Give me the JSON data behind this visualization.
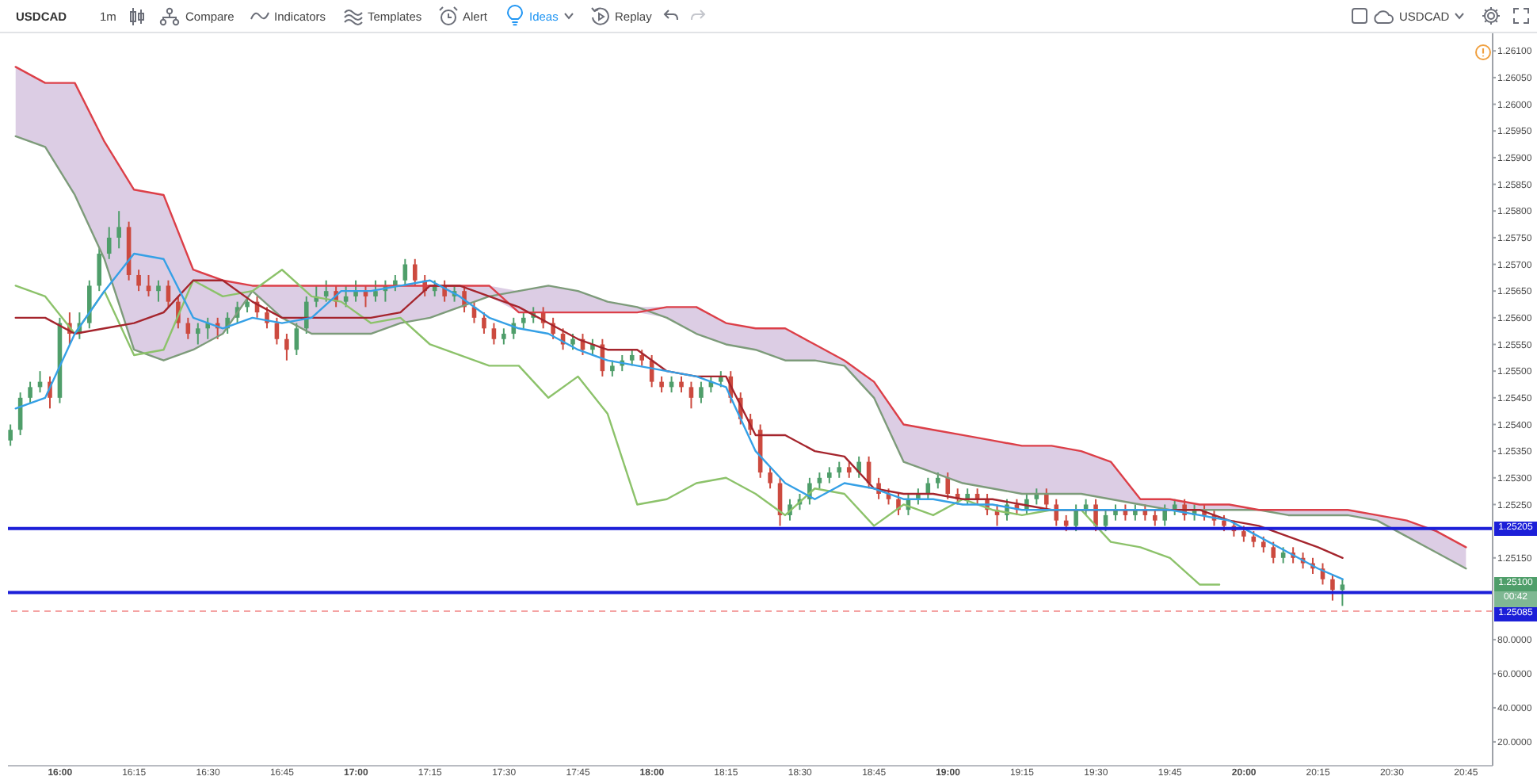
{
  "chart_data": [
    {
      "type": "candlestick",
      "title": "USDCAD",
      "x": [
        15.8333,
        15.8667,
        15.9,
        15.9333,
        15.9667,
        16,
        16.0333,
        16.0667,
        16.1,
        16.1333,
        16.1667,
        16.2,
        16.2333,
        16.2667,
        16.3,
        16.3333,
        16.3667,
        16.4,
        16.4333,
        16.4667,
        16.5,
        16.5333,
        16.5667,
        16.6,
        16.6333,
        16.6667,
        16.7,
        16.7333,
        16.7667,
        16.8,
        16.8333,
        16.8667,
        16.9,
        16.9333,
        16.9667,
        17,
        17.0333,
        17.0667,
        17.1,
        17.1333,
        17.1667,
        17.2,
        17.2333,
        17.2667,
        17.3,
        17.3333,
        17.3667,
        17.4,
        17.4333,
        17.4667,
        17.5,
        17.5333,
        17.5667,
        17.6,
        17.6333,
        17.6667,
        17.7,
        17.7333,
        17.7667,
        17.8,
        17.8333,
        17.8667,
        17.9,
        17.9333,
        17.9667,
        18,
        18.0333,
        18.0667,
        18.1,
        18.1333,
        18.1667,
        18.2,
        18.2333,
        18.2667,
        18.3,
        18.3333,
        18.3667,
        18.4,
        18.4333,
        18.4667,
        18.5,
        18.5333,
        18.5667,
        18.6,
        18.6333,
        18.6667,
        18.7,
        18.7333,
        18.7667,
        18.8,
        18.8333,
        18.8667,
        18.9,
        18.9333,
        18.9667,
        19,
        19.0333,
        19.0667,
        19.1,
        19.1333,
        19.1667,
        19.2,
        19.2333,
        19.2667,
        19.3,
        19.3333,
        19.3667,
        19.4,
        19.4333,
        19.4667,
        19.5,
        19.5333,
        19.5667,
        19.6,
        19.6333,
        19.6667,
        19.7,
        19.7333,
        19.7667,
        19.8,
        19.8333,
        19.8667,
        19.9,
        19.9333,
        19.9667,
        20,
        20.0333,
        20.0667,
        20.1,
        20.1333,
        20.1667,
        20.2,
        20.2333,
        20.2667,
        20.3,
        20.3333
      ],
      "ohlc": [
        [
          1.2537,
          1.254,
          1.2536,
          1.2539
        ],
        [
          1.2539,
          1.2546,
          1.2538,
          1.2545
        ],
        [
          1.2545,
          1.2548,
          1.2544,
          1.2547
        ],
        [
          1.2547,
          1.255,
          1.2546,
          1.2548
        ],
        [
          1.2548,
          1.2549,
          1.2543,
          1.2545
        ],
        [
          1.2545,
          1.256,
          1.2544,
          1.2559
        ],
        [
          1.2559,
          1.2561,
          1.2555,
          1.2557
        ],
        [
          1.2557,
          1.2561,
          1.2556,
          1.2559
        ],
        [
          1.2559,
          1.2567,
          1.2558,
          1.2566
        ],
        [
          1.2566,
          1.2573,
          1.2565,
          1.2572
        ],
        [
          1.2572,
          1.2577,
          1.2571,
          1.2575
        ],
        [
          1.2575,
          1.258,
          1.2573,
          1.2577
        ],
        [
          1.2577,
          1.2578,
          1.2567,
          1.2568
        ],
        [
          1.2568,
          1.2569,
          1.2565,
          1.2566
        ],
        [
          1.2566,
          1.2568,
          1.2564,
          1.2565
        ],
        [
          1.2565,
          1.2567,
          1.2563,
          1.2566
        ],
        [
          1.2566,
          1.2567,
          1.2562,
          1.2563
        ],
        [
          1.2563,
          1.2564,
          1.2558,
          1.2559
        ],
        [
          1.2559,
          1.256,
          1.2556,
          1.2557
        ],
        [
          1.2557,
          1.2559,
          1.2555,
          1.2558
        ],
        [
          1.2558,
          1.256,
          1.2556,
          1.2559
        ],
        [
          1.2559,
          1.256,
          1.2556,
          1.2558
        ],
        [
          1.2558,
          1.2561,
          1.2557,
          1.256
        ],
        [
          1.256,
          1.2563,
          1.2559,
          1.2562
        ],
        [
          1.2562,
          1.2564,
          1.2561,
          1.2563
        ],
        [
          1.2563,
          1.2564,
          1.256,
          1.2561
        ],
        [
          1.2561,
          1.2562,
          1.2558,
          1.2559
        ],
        [
          1.2559,
          1.256,
          1.2555,
          1.2556
        ],
        [
          1.2556,
          1.2557,
          1.2552,
          1.2554
        ],
        [
          1.2554,
          1.2559,
          1.2553,
          1.2558
        ],
        [
          1.2558,
          1.2564,
          1.2557,
          1.2563
        ],
        [
          1.2563,
          1.2566,
          1.2562,
          1.2564
        ],
        [
          1.2564,
          1.2567,
          1.2563,
          1.2565
        ],
        [
          1.2565,
          1.2566,
          1.2562,
          1.2563
        ],
        [
          1.2563,
          1.2566,
          1.2562,
          1.2564
        ],
        [
          1.2564,
          1.2567,
          1.2563,
          1.2565
        ],
        [
          1.2565,
          1.2566,
          1.2562,
          1.2564
        ],
        [
          1.2564,
          1.2567,
          1.2563,
          1.2565
        ],
        [
          1.2565,
          1.2567,
          1.2563,
          1.2566
        ],
        [
          1.2566,
          1.2568,
          1.2565,
          1.2567
        ],
        [
          1.2567,
          1.2571,
          1.2566,
          1.257
        ],
        [
          1.257,
          1.2571,
          1.2566,
          1.2567
        ],
        [
          1.2567,
          1.2568,
          1.2564,
          1.2565
        ],
        [
          1.2565,
          1.2567,
          1.2564,
          1.2566
        ],
        [
          1.2566,
          1.2567,
          1.2563,
          1.2564
        ],
        [
          1.2564,
          1.2566,
          1.2563,
          1.2565
        ],
        [
          1.2565,
          1.2566,
          1.2561,
          1.2562
        ],
        [
          1.2562,
          1.2563,
          1.2559,
          1.256
        ],
        [
          1.256,
          1.2561,
          1.2557,
          1.2558
        ],
        [
          1.2558,
          1.2559,
          1.2555,
          1.2556
        ],
        [
          1.2556,
          1.2558,
          1.2555,
          1.2557
        ],
        [
          1.2557,
          1.256,
          1.2556,
          1.2559
        ],
        [
          1.2559,
          1.2561,
          1.2558,
          1.256
        ],
        [
          1.256,
          1.2562,
          1.2559,
          1.2561
        ],
        [
          1.2561,
          1.2562,
          1.2558,
          1.2559
        ],
        [
          1.2559,
          1.256,
          1.2556,
          1.2557
        ],
        [
          1.2557,
          1.2558,
          1.2554,
          1.2555
        ],
        [
          1.2555,
          1.2557,
          1.2554,
          1.2556
        ],
        [
          1.2556,
          1.2557,
          1.2553,
          1.2554
        ],
        [
          1.2554,
          1.2556,
          1.2553,
          1.2555
        ],
        [
          1.2555,
          1.2556,
          1.2549,
          1.255
        ],
        [
          1.255,
          1.2552,
          1.2549,
          1.2551
        ],
        [
          1.2551,
          1.2553,
          1.255,
          1.2552
        ],
        [
          1.2552,
          1.2554,
          1.2551,
          1.2553
        ],
        [
          1.2553,
          1.2554,
          1.2551,
          1.2552
        ],
        [
          1.2552,
          1.2553,
          1.2547,
          1.2548
        ],
        [
          1.2548,
          1.2549,
          1.2546,
          1.2547
        ],
        [
          1.2547,
          1.2549,
          1.2546,
          1.2548
        ],
        [
          1.2548,
          1.2549,
          1.2546,
          1.2547
        ],
        [
          1.2547,
          1.2548,
          1.2543,
          1.2545
        ],
        [
          1.2545,
          1.2548,
          1.2544,
          1.2547
        ],
        [
          1.2547,
          1.2549,
          1.2546,
          1.2548
        ],
        [
          1.2548,
          1.255,
          1.2547,
          1.2549
        ],
        [
          1.2549,
          1.255,
          1.2544,
          1.2545
        ],
        [
          1.2545,
          1.2546,
          1.254,
          1.2541
        ],
        [
          1.2541,
          1.2542,
          1.2538,
          1.2539
        ],
        [
          1.2539,
          1.254,
          1.253,
          1.2531
        ],
        [
          1.2531,
          1.2532,
          1.2528,
          1.2529
        ],
        [
          1.2529,
          1.253,
          1.2521,
          1.2523
        ],
        [
          1.2523,
          1.2526,
          1.2522,
          1.2525
        ],
        [
          1.2525,
          1.2527,
          1.2524,
          1.2526
        ],
        [
          1.2526,
          1.253,
          1.2525,
          1.2529
        ],
        [
          1.2529,
          1.2531,
          1.2528,
          1.253
        ],
        [
          1.253,
          1.2532,
          1.2529,
          1.2531
        ],
        [
          1.2531,
          1.2533,
          1.253,
          1.2532
        ],
        [
          1.2532,
          1.2533,
          1.253,
          1.2531
        ],
        [
          1.2531,
          1.2534,
          1.253,
          1.2533
        ],
        [
          1.2533,
          1.2534,
          1.2528,
          1.2529
        ],
        [
          1.2529,
          1.253,
          1.2526,
          1.2527
        ],
        [
          1.2527,
          1.2528,
          1.2525,
          1.2526
        ],
        [
          1.2526,
          1.2527,
          1.2523,
          1.2524
        ],
        [
          1.2524,
          1.2527,
          1.2523,
          1.2526
        ],
        [
          1.2526,
          1.2528,
          1.2525,
          1.2527
        ],
        [
          1.2527,
          1.253,
          1.2526,
          1.2529
        ],
        [
          1.2529,
          1.2531,
          1.2528,
          1.253
        ],
        [
          1.253,
          1.2531,
          1.2526,
          1.2527
        ],
        [
          1.2527,
          1.2528,
          1.2525,
          1.2526
        ],
        [
          1.2526,
          1.2528,
          1.2525,
          1.2527
        ],
        [
          1.2527,
          1.2528,
          1.2525,
          1.2526
        ],
        [
          1.2526,
          1.2527,
          1.2523,
          1.2524
        ],
        [
          1.2524,
          1.2525,
          1.2521,
          1.2523
        ],
        [
          1.2523,
          1.2526,
          1.2522,
          1.2525
        ],
        [
          1.2525,
          1.2526,
          1.2523,
          1.2524
        ],
        [
          1.2524,
          1.2527,
          1.2523,
          1.2526
        ],
        [
          1.2526,
          1.2528,
          1.2525,
          1.2527
        ],
        [
          1.2527,
          1.2528,
          1.2524,
          1.2525
        ],
        [
          1.2525,
          1.2526,
          1.2521,
          1.2522
        ],
        [
          1.2522,
          1.2523,
          1.252,
          1.2521
        ],
        [
          1.2521,
          1.2525,
          1.252,
          1.2524
        ],
        [
          1.2524,
          1.2526,
          1.2523,
          1.2525
        ],
        [
          1.2525,
          1.2526,
          1.252,
          1.2521
        ],
        [
          1.2521,
          1.2524,
          1.252,
          1.2523
        ],
        [
          1.2523,
          1.2525,
          1.2522,
          1.2524
        ],
        [
          1.2524,
          1.2525,
          1.2522,
          1.2523
        ],
        [
          1.2523,
          1.2525,
          1.2522,
          1.2524
        ],
        [
          1.2524,
          1.2525,
          1.2522,
          1.2523
        ],
        [
          1.2523,
          1.2524,
          1.2521,
          1.2522
        ],
        [
          1.2522,
          1.2525,
          1.2521,
          1.2524
        ],
        [
          1.2524,
          1.2526,
          1.2523,
          1.2525
        ],
        [
          1.2525,
          1.2526,
          1.2522,
          1.2523
        ],
        [
          1.2523,
          1.2525,
          1.2522,
          1.2524
        ],
        [
          1.2524,
          1.2525,
          1.2522,
          1.2523
        ],
        [
          1.2523,
          1.2524,
          1.2521,
          1.2522
        ],
        [
          1.2522,
          1.2523,
          1.252,
          1.2521
        ],
        [
          1.2521,
          1.2522,
          1.2519,
          1.252
        ],
        [
          1.252,
          1.2521,
          1.2518,
          1.2519
        ],
        [
          1.2519,
          1.252,
          1.2517,
          1.2518
        ],
        [
          1.2518,
          1.2519,
          1.2516,
          1.2517
        ],
        [
          1.2517,
          1.2518,
          1.2514,
          1.2515
        ],
        [
          1.2515,
          1.2517,
          1.2514,
          1.2516
        ],
        [
          1.2516,
          1.2517,
          1.2514,
          1.2515
        ],
        [
          1.2515,
          1.2516,
          1.2513,
          1.2514
        ],
        [
          1.2514,
          1.2515,
          1.2512,
          1.2513
        ],
        [
          1.2513,
          1.2514,
          1.251,
          1.2511
        ],
        [
          1.2511,
          1.2512,
          1.2507,
          1.2509
        ],
        [
          1.2509,
          1.2511,
          1.2506,
          1.251
        ]
      ],
      "colors": [
        "#4f9e6a",
        "#4f9e6a",
        "#4f9e6a",
        "#4f9e6a",
        "#cc4a3f",
        "#4f9e6a",
        "#cc4a3f",
        "#4f9e6a",
        "#4f9e6a",
        "#4f9e6a",
        "#4f9e6a",
        "#4f9e6a",
        "#cc4a3f",
        "#cc4a3f",
        "#cc4a3f",
        "#4f9e6a",
        "#cc4a3f",
        "#cc4a3f",
        "#cc4a3f",
        "#4f9e6a",
        "#4f9e6a",
        "#cc4a3f",
        "#4f9e6a",
        "#4f9e6a",
        "#4f9e6a",
        "#cc4a3f",
        "#cc4a3f",
        "#cc4a3f",
        "#cc4a3f",
        "#4f9e6a",
        "#4f9e6a",
        "#4f9e6a",
        "#4f9e6a",
        "#cc4a3f",
        "#4f9e6a",
        "#4f9e6a",
        "#cc4a3f",
        "#4f9e6a",
        "#4f9e6a",
        "#4f9e6a",
        "#4f9e6a",
        "#cc4a3f",
        "#cc4a3f",
        "#4f9e6a",
        "#cc4a3f",
        "#4f9e6a",
        "#cc4a3f",
        "#cc4a3f",
        "#cc4a3f",
        "#cc4a3f",
        "#4f9e6a",
        "#4f9e6a",
        "#4f9e6a",
        "#4f9e6a",
        "#cc4a3f",
        "#cc4a3f",
        "#cc4a3f",
        "#4f9e6a",
        "#cc4a3f",
        "#4f9e6a",
        "#cc4a3f",
        "#4f9e6a",
        "#4f9e6a",
        "#4f9e6a",
        "#cc4a3f",
        "#cc4a3f",
        "#cc4a3f",
        "#4f9e6a",
        "#cc4a3f",
        "#cc4a3f",
        "#4f9e6a",
        "#4f9e6a",
        "#4f9e6a",
        "#cc4a3f",
        "#cc4a3f",
        "#cc4a3f",
        "#cc4a3f",
        "#cc4a3f",
        "#cc4a3f",
        "#4f9e6a",
        "#4f9e6a",
        "#4f9e6a",
        "#4f9e6a",
        "#4f9e6a",
        "#4f9e6a",
        "#cc4a3f",
        "#4f9e6a",
        "#cc4a3f",
        "#cc4a3f",
        "#cc4a3f",
        "#cc4a3f",
        "#4f9e6a",
        "#4f9e6a",
        "#4f9e6a",
        "#4f9e6a",
        "#cc4a3f",
        "#cc4a3f",
        "#4f9e6a",
        "#cc4a3f",
        "#cc4a3f",
        "#cc4a3f",
        "#4f9e6a",
        "#cc4a3f",
        "#4f9e6a",
        "#4f9e6a",
        "#cc4a3f",
        "#cc4a3f",
        "#cc4a3f",
        "#4f9e6a",
        "#4f9e6a",
        "#cc4a3f",
        "#4f9e6a",
        "#4f9e6a",
        "#cc4a3f",
        "#4f9e6a",
        "#cc4a3f",
        "#cc4a3f",
        "#4f9e6a",
        "#4f9e6a",
        "#cc4a3f",
        "#4f9e6a",
        "#cc4a3f",
        "#cc4a3f",
        "#cc4a3f",
        "#cc4a3f",
        "#cc4a3f",
        "#cc4a3f",
        "#cc4a3f",
        "#cc4a3f",
        "#4f9e6a",
        "#cc4a3f",
        "#cc4a3f",
        "#cc4a3f",
        "#cc4a3f",
        "#cc4a3f",
        "#4f9e6a"
      ],
      "series": [
        {
          "type": "line",
          "color": "#7d9b7a",
          "x": [
            15.85,
            15.95,
            16.05,
            16.15,
            16.25,
            16.35,
            16.45,
            16.55,
            16.65,
            16.75,
            16.85,
            16.95,
            17.05,
            17.15,
            17.25,
            17.35,
            17.45,
            17.55,
            17.65,
            17.75,
            17.85,
            17.95,
            18.05,
            18.15,
            18.25,
            18.35,
            18.45,
            18.55,
            18.65,
            18.75,
            18.85,
            18.95,
            19.05,
            19.15,
            19.25,
            19.35,
            19.45,
            19.55,
            19.65,
            19.75,
            19.85,
            19.95,
            20.05,
            20.15,
            20.25,
            20.35,
            20.45,
            20.55,
            20.65,
            20.75
          ],
          "values": [
            1.2594,
            1.2592,
            1.2583,
            1.2571,
            1.2554,
            1.2552,
            1.2554,
            1.2557,
            1.2565,
            1.256,
            1.2557,
            1.2557,
            1.2557,
            1.2559,
            1.256,
            1.2562,
            1.2564,
            1.2565,
            1.2566,
            1.2565,
            1.2563,
            1.2562,
            1.256,
            1.2557,
            1.2555,
            1.2554,
            1.2552,
            1.2552,
            1.2551,
            1.2545,
            1.2533,
            1.2531,
            1.2529,
            1.2528,
            1.2527,
            1.2527,
            1.2527,
            1.2526,
            1.2525,
            1.2524,
            1.2524,
            1.2524,
            1.2524,
            1.2523,
            1.2523,
            1.2523,
            1.2522,
            1.2519,
            1.2516,
            1.2513
          ]
        },
        {
          "type": "line",
          "color": "#dc3f48",
          "x": [
            15.85,
            15.95,
            16.05,
            16.15,
            16.25,
            16.35,
            16.45,
            16.55,
            16.65,
            16.75,
            16.85,
            16.95,
            17.05,
            17.15,
            17.25,
            17.35,
            17.45,
            17.55,
            17.65,
            17.75,
            17.85,
            17.95,
            18.05,
            18.15,
            18.25,
            18.35,
            18.45,
            18.55,
            18.65,
            18.75,
            18.85,
            18.95,
            19.05,
            19.15,
            19.25,
            19.35,
            19.45,
            19.55,
            19.65,
            19.75,
            19.85,
            19.95,
            20.05,
            20.15,
            20.25,
            20.35,
            20.45,
            20.55,
            20.65,
            20.75
          ],
          "values": [
            1.2607,
            1.2604,
            1.2604,
            1.2593,
            1.2584,
            1.2583,
            1.2569,
            1.2567,
            1.2566,
            1.2566,
            1.2566,
            1.2566,
            1.2566,
            1.2566,
            1.2566,
            1.2566,
            1.2566,
            1.2561,
            1.2561,
            1.2561,
            1.2561,
            1.2561,
            1.2562,
            1.2562,
            1.2559,
            1.2558,
            1.2558,
            1.2555,
            1.2552,
            1.2548,
            1.254,
            1.2539,
            1.2538,
            1.2537,
            1.2536,
            1.2536,
            1.2535,
            1.2533,
            1.2526,
            1.2526,
            1.2525,
            1.2525,
            1.2524,
            1.2524,
            1.2524,
            1.2524,
            1.2523,
            1.2522,
            1.252,
            1.2517
          ],
          "lower": [
            1.2594,
            1.2592,
            1.2583,
            1.2571,
            1.2554,
            1.2552,
            1.2554,
            1.2557,
            1.2565,
            1.256,
            1.2557,
            1.2557,
            1.2557,
            1.2559,
            1.256,
            1.2562,
            1.2564,
            1.2561,
            1.2561,
            1.2561,
            1.2561,
            1.2561,
            1.256,
            1.2557,
            1.2555,
            1.2554,
            1.2552,
            1.2552,
            1.2551,
            1.2545,
            1.2533,
            1.2531,
            1.2529,
            1.2528,
            1.2527,
            1.2527,
            1.2527,
            1.2526,
            1.2525,
            1.2524,
            1.2524,
            1.2524,
            1.2524,
            1.2523,
            1.2523,
            1.2523,
            1.2522,
            1.2519,
            1.2516,
            1.2513
          ],
          "upper": [
            1.2607,
            1.2604,
            1.2604,
            1.2593,
            1.2584,
            1.2583,
            1.2569,
            1.2567,
            1.2566,
            1.2566,
            1.2566,
            1.2566,
            1.2566,
            1.2566,
            1.2566,
            1.2566,
            1.2566,
            1.2565,
            1.2566,
            1.2565,
            1.2563,
            1.2562,
            1.2562,
            1.2562,
            1.2559,
            1.2558,
            1.2558,
            1.2555,
            1.2552,
            1.2548,
            1.254,
            1.2539,
            1.2538,
            1.2537,
            1.2536,
            1.2536,
            1.2535,
            1.2533,
            1.2526,
            1.2526,
            1.2525,
            1.2525,
            1.2524,
            1.2524,
            1.2524,
            1.2524,
            1.2523,
            1.2522,
            1.252,
            1.2517
          ]
        },
        {
          "type": "line",
          "color": "#8cc26a",
          "x": [
            15.85,
            15.95,
            16.05,
            16.15,
            16.25,
            16.35,
            16.45,
            16.55,
            16.65,
            16.75,
            16.85,
            16.95,
            17.05,
            17.15,
            17.25,
            17.35,
            17.45,
            17.55,
            17.65,
            17.75,
            17.85,
            17.95,
            18.05,
            18.15,
            18.25,
            18.35,
            18.45,
            18.55,
            18.65,
            18.75,
            18.85,
            18.95,
            19.05,
            19.15,
            19.25,
            19.35,
            19.45,
            19.55,
            19.65,
            19.75,
            19.85,
            19.9167
          ],
          "values": [
            1.2566,
            1.2564,
            1.2557,
            1.2565,
            1.2553,
            1.2554,
            1.2567,
            1.2564,
            1.2565,
            1.2569,
            1.2564,
            1.2563,
            1.2559,
            1.256,
            1.2555,
            1.2553,
            1.2551,
            1.2551,
            1.2545,
            1.2549,
            1.2542,
            1.2525,
            1.2526,
            1.2529,
            1.253,
            1.2527,
            1.2523,
            1.2528,
            1.2527,
            1.2521,
            1.2525,
            1.2523,
            1.2526,
            1.2524,
            1.2523,
            1.2524,
            1.2524,
            1.2518,
            1.2517,
            1.2515,
            1.251,
            1.251
          ]
        },
        {
          "type": "line",
          "color": "#a5252d",
          "x": [
            15.85,
            15.95,
            16.05,
            16.15,
            16.25,
            16.35,
            16.45,
            16.55,
            16.65,
            16.75,
            16.85,
            16.95,
            17.05,
            17.15,
            17.25,
            17.35,
            17.45,
            17.55,
            17.65,
            17.75,
            17.85,
            17.95,
            18.05,
            18.15,
            18.25,
            18.35,
            18.45,
            18.55,
            18.65,
            18.75,
            18.85,
            18.95,
            19.05,
            19.15,
            19.25,
            19.35,
            19.45,
            19.55,
            19.65,
            19.75,
            19.85,
            19.95,
            20.05,
            20.15,
            20.25,
            20.3333
          ],
          "values": [
            1.256,
            1.256,
            1.2557,
            1.2558,
            1.2559,
            1.2561,
            1.2567,
            1.2567,
            1.2563,
            1.256,
            1.256,
            1.256,
            1.256,
            1.2561,
            1.2566,
            1.2566,
            1.2564,
            1.2562,
            1.2559,
            1.2556,
            1.2554,
            1.2554,
            1.255,
            1.2549,
            1.2549,
            1.2538,
            1.2538,
            1.2535,
            1.2534,
            1.2528,
            1.2527,
            1.2527,
            1.2526,
            1.2526,
            1.2525,
            1.2524,
            1.2524,
            1.2524,
            1.2524,
            1.2524,
            1.2524,
            1.2522,
            1.2521,
            1.2519,
            1.2517,
            1.2515
          ]
        },
        {
          "type": "line",
          "color": "#35a0e6",
          "x": [
            15.85,
            15.95,
            16.05,
            16.15,
            16.25,
            16.35,
            16.45,
            16.55,
            16.65,
            16.75,
            16.85,
            16.95,
            17.05,
            17.15,
            17.25,
            17.35,
            17.45,
            17.55,
            17.65,
            17.75,
            17.85,
            17.95,
            18.05,
            18.15,
            18.25,
            18.35,
            18.45,
            18.55,
            18.65,
            18.75,
            18.85,
            18.95,
            19.05,
            19.15,
            19.25,
            19.35,
            19.45,
            19.55,
            19.65,
            19.75,
            19.85,
            19.95,
            20.05,
            20.15,
            20.25,
            20.3333
          ],
          "values": [
            1.2543,
            1.2545,
            1.2557,
            1.2565,
            1.2572,
            1.2571,
            1.256,
            1.2558,
            1.256,
            1.2559,
            1.256,
            1.2565,
            1.2565,
            1.2566,
            1.2567,
            1.2564,
            1.256,
            1.2558,
            1.2557,
            1.2554,
            1.2552,
            1.2551,
            1.255,
            1.2549,
            1.2547,
            1.2535,
            1.2529,
            1.2526,
            1.2529,
            1.2528,
            1.2526,
            1.2526,
            1.2525,
            1.2525,
            1.2524,
            1.2524,
            1.2524,
            1.2524,
            1.2524,
            1.2524,
            1.2523,
            1.2522,
            1.2519,
            1.2516,
            1.2513,
            1.2511
          ]
        }
      ],
      "xlim": [
        15.824,
        20.84
      ],
      "ylim": [
        1.25016,
        1.26133
      ],
      "yticks": [
        {
          "value": 1.2515,
          "label": "1.25150"
        },
        {
          "value": 1.2525,
          "label": "1.25250"
        },
        {
          "value": 1.253,
          "label": "1.25300"
        },
        {
          "value": 1.2535,
          "label": "1.25350"
        },
        {
          "value": 1.254,
          "label": "1.25400"
        },
        {
          "value": 1.2545,
          "label": "1.25450"
        },
        {
          "value": 1.255,
          "label": "1.25500"
        },
        {
          "value": 1.2555,
          "label": "1.25550"
        },
        {
          "value": 1.256,
          "label": "1.25600"
        },
        {
          "value": 1.2565,
          "label": "1.25650"
        },
        {
          "value": 1.257,
          "label": "1.25700"
        },
        {
          "value": 1.2575,
          "label": "1.25750"
        },
        {
          "value": 1.258,
          "label": "1.25800"
        },
        {
          "value": 1.2585,
          "label": "1.25850"
        },
        {
          "value": 1.259,
          "label": "1.25900"
        },
        {
          "value": 1.2595,
          "label": "1.25950"
        },
        {
          "value": 1.26,
          "label": "1.26000"
        },
        {
          "value": 1.2605,
          "label": "1.26050"
        },
        {
          "value": 1.261,
          "label": "1.26100"
        }
      ],
      "tick_labels": "y",
      "ref_lines": [
        {
          "axis": "y",
          "value": 1.25205,
          "label": "1.25205",
          "color": "#1c1fd8"
        },
        {
          "axis": "y",
          "value": 1.25085,
          "label": "1.25085",
          "color": "#1c1fd8"
        },
        {
          "axis": "y",
          "value": 1.2505,
          "color": "#f4a3a3",
          "line_style": "dashed"
        }
      ],
      "annotations": [
        "1m",
        "Compare",
        "Indicators",
        "Templates",
        "Alert",
        "Ideas",
        "Replay",
        "USDCAD",
        {
          "text": "1.25100",
          "y": 1.251
        },
        "00:42"
      ]
    },
    {
      "type": "line",
      "xlim": [
        15.824,
        20.84
      ],
      "xticks": [
        {
          "value": 16,
          "label": "16:00"
        },
        {
          "value": 16.25,
          "label": "16:15"
        },
        {
          "value": 16.5,
          "label": "16:30"
        },
        {
          "value": 16.75,
          "label": "16:45"
        },
        {
          "value": 17,
          "label": "17:00"
        },
        {
          "value": 17.25,
          "label": "17:15"
        },
        {
          "value": 17.5,
          "label": "17:30"
        },
        {
          "value": 17.75,
          "label": "17:45"
        },
        {
          "value": 18,
          "label": "18:00"
        },
        {
          "value": 18.25,
          "label": "18:15"
        },
        {
          "value": 18.5,
          "label": "18:30"
        },
        {
          "value": 18.75,
          "label": "18:45"
        },
        {
          "value": 19,
          "label": "19:00"
        },
        {
          "value": 19.25,
          "label": "19:15"
        },
        {
          "value": 19.5,
          "label": "19:30"
        },
        {
          "value": 19.75,
          "label": "19:45"
        },
        {
          "value": 20,
          "label": "20:00"
        },
        {
          "value": 20.25,
          "label": "20:15"
        },
        {
          "value": 20.5,
          "label": "20:30"
        },
        {
          "value": 20.75,
          "label": "20:45"
        }
      ],
      "ylim": [
        6,
        86
      ],
      "yticks": [
        {
          "value": 20,
          "label": "20.0000"
        },
        {
          "value": 40,
          "label": "40.0000"
        },
        {
          "value": 60,
          "label": "60.0000"
        },
        {
          "value": 80,
          "label": "80.0000"
        }
      ]
    }
  ]
}
